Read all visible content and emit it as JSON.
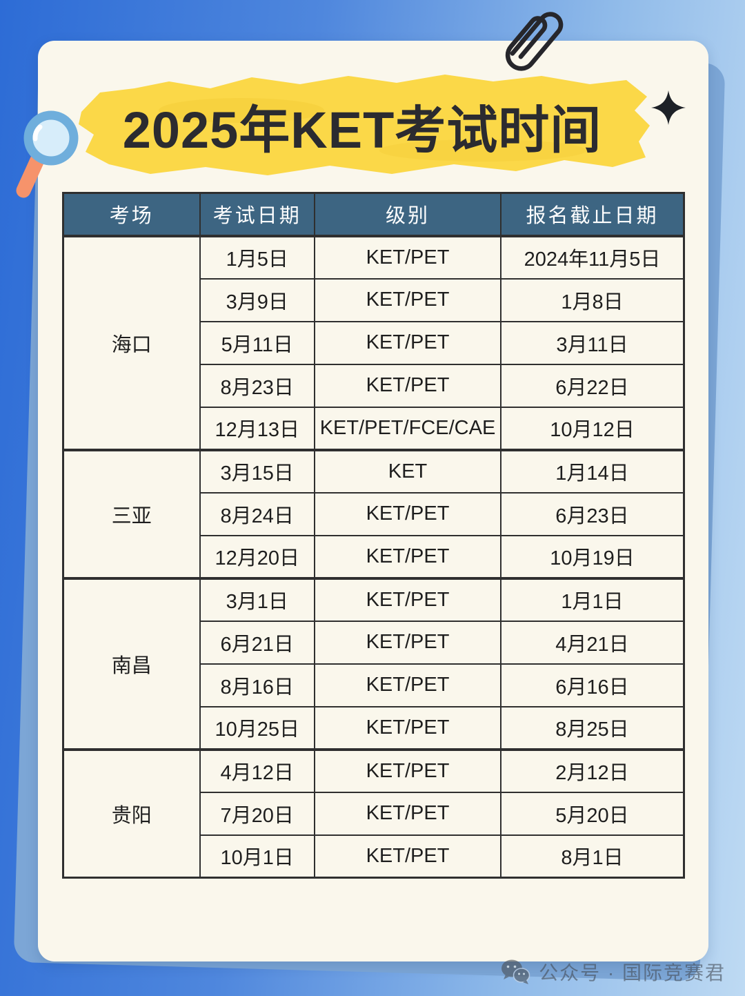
{
  "page": {
    "title": "2025年KET考试时间"
  },
  "table": {
    "headers": [
      "考场",
      "考试日期",
      "级别",
      "报名截止日期"
    ],
    "groups": [
      {
        "venue": "海口",
        "rows": [
          [
            "1月5日",
            "KET/PET",
            "2024年11月5日"
          ],
          [
            "3月9日",
            "KET/PET",
            "1月8日"
          ],
          [
            "5月11日",
            "KET/PET",
            "3月11日"
          ],
          [
            "8月23日",
            "KET/PET",
            "6月22日"
          ],
          [
            "12月13日",
            "KET/PET/FCE/CAE",
            "10月12日"
          ]
        ]
      },
      {
        "venue": "三亚",
        "rows": [
          [
            "3月15日",
            "KET",
            "1月14日"
          ],
          [
            "8月24日",
            "KET/PET",
            "6月23日"
          ],
          [
            "12月20日",
            "KET/PET",
            "10月19日"
          ]
        ]
      },
      {
        "venue": "南昌",
        "rows": [
          [
            "3月1日",
            "KET/PET",
            "1月1日"
          ],
          [
            "6月21日",
            "KET/PET",
            "4月21日"
          ],
          [
            "8月16日",
            "KET/PET",
            "6月16日"
          ],
          [
            "10月25日",
            "KET/PET",
            "8月25日"
          ]
        ]
      },
      {
        "venue": "贵阳",
        "rows": [
          [
            "4月12日",
            "KET/PET",
            "2月12日"
          ],
          [
            "7月20日",
            "KET/PET",
            "5月20日"
          ],
          [
            "10月1日",
            "KET/PET",
            "8月1日"
          ]
        ]
      }
    ]
  },
  "footer": {
    "watermark": "公众号 · 国际竞赛君"
  },
  "icons": {
    "top_left": "magnifier-icon",
    "top_center": "paperclip-icon",
    "top_right": "sparkle-icon",
    "footer": "wechat-icon"
  },
  "colors": {
    "background_left": "#2D6CD6",
    "background_right": "#BEDAF3",
    "card": "#FAF7EC",
    "back_card": "#7CA6D6",
    "header_bg": "#3D6582",
    "header_text": "#FFFFFF",
    "cell_text": "#1E1E1E",
    "table_border": "#2F2F2F",
    "highlight_yellow": "#FBD848",
    "title_text": "#2B2B30",
    "magnifier_ring": "#6FAEDC",
    "magnifier_handle": "#F6936B"
  }
}
